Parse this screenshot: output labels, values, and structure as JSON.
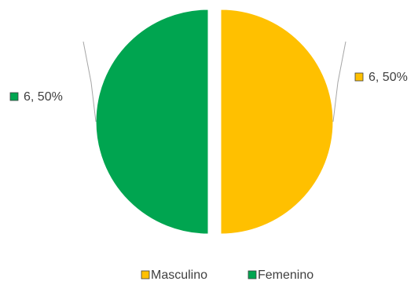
{
  "chart_data": {
    "type": "pie",
    "categories": [
      "Masculino",
      "Femenino"
    ],
    "values": [
      6,
      6
    ],
    "percentages": [
      "50%",
      "50%"
    ],
    "data_labels": [
      "6, 50%",
      "6, 50%"
    ],
    "colors": [
      "#FFC000",
      "#00A550"
    ],
    "exploded": true,
    "legend_position": "bottom",
    "title": ""
  }
}
